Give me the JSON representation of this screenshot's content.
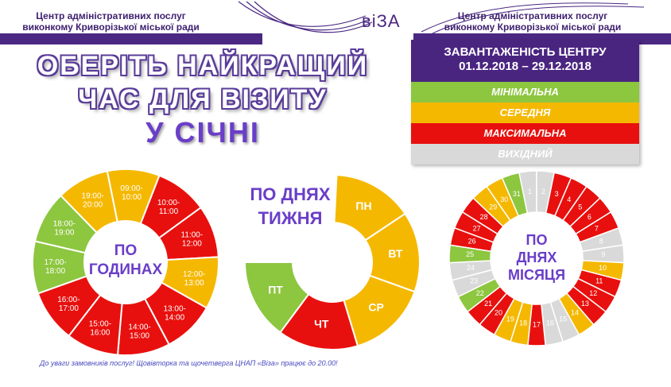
{
  "header": {
    "left_line1": "Центр адміністративних послуг",
    "left_line2": "виконкому Криворізької міської ради",
    "logo": "віЗА",
    "right_line1": "Центр адміністративних послуг",
    "right_line2": "виконкому Криворізької міської ради"
  },
  "title": {
    "line1": "ОБЕРІТЬ НАЙКРАЩИЙ",
    "line2": "ЧАС ДЛЯ ВІЗИТУ",
    "line3": "У СІЧНІ"
  },
  "legend": {
    "heading_line1": "ЗАВАНТАЖЕНІСТЬ ЦЕНТРУ",
    "heading_line2": "01.12.2018 – 29.12.2018",
    "items": [
      {
        "label": "МІНІМАЛЬНА",
        "color": "#8dc63f",
        "text_color": "#ffffff"
      },
      {
        "label": "СЕРЕДНЯ",
        "color": "#f5b800",
        "text_color": "#ffffff"
      },
      {
        "label": "МАКСИМАЛЬНА",
        "color": "#e8100e",
        "text_color": "#ffffff"
      },
      {
        "label": "ВИХІДНИЙ",
        "color": "#d9d9d9",
        "text_color": "#ffffff"
      }
    ]
  },
  "colors": {
    "min": "#8dc63f",
    "mid": "#f5b800",
    "max": "#e8100e",
    "off": "#d9d9d9"
  },
  "chart_data": [
    {
      "type": "pie",
      "title": "ПО ГОДИНАХ",
      "categories": [
        "09:00-10:00",
        "10:00-11:00",
        "11:00-12:00",
        "12:00-13:00",
        "13:00-14:00",
        "14:00-15:00",
        "15:00-16:00",
        "16:00-17:00",
        "17:00-18:00",
        "18:00-19:00",
        "19:00-20:00"
      ],
      "values": [
        1,
        1,
        1,
        1,
        1,
        1,
        1,
        1,
        1,
        1,
        1
      ],
      "load": [
        "mid",
        "max",
        "max",
        "mid",
        "max",
        "max",
        "max",
        "max",
        "min",
        "min",
        "mid"
      ]
    },
    {
      "type": "pie",
      "title_line1": "ПО ДНЯХ",
      "title_line2": "ТИЖНЯ",
      "categories": [
        "ПН",
        "ВТ",
        "СР",
        "ЧТ",
        "ПТ"
      ],
      "values": [
        1,
        1,
        1,
        1,
        1
      ],
      "load": [
        "mid",
        "mid",
        "mid",
        "max",
        "min"
      ]
    },
    {
      "type": "pie",
      "title_line1": "ПО",
      "title_line2": "ДНЯХ",
      "title_line3": "МІСЯЦЯ",
      "categories": [
        "1",
        "2",
        "3",
        "4",
        "5",
        "6",
        "7",
        "8",
        "9",
        "10",
        "11",
        "12",
        "13",
        "14",
        "15",
        "16",
        "17",
        "18",
        "19",
        "20",
        "21",
        "22",
        "23",
        "24",
        "25",
        "26",
        "27",
        "28",
        "29",
        "30",
        "31"
      ],
      "values": [
        1,
        1,
        1,
        1,
        1,
        1,
        1,
        1,
        1,
        1,
        1,
        1,
        1,
        1,
        1,
        1,
        1,
        1,
        1,
        1,
        1,
        1,
        1,
        1,
        1,
        1,
        1,
        1,
        1,
        1,
        1
      ],
      "load": [
        "off",
        "off",
        "max",
        "max",
        "max",
        "max",
        "max",
        "off",
        "off",
        "mid",
        "max",
        "max",
        "max",
        "mid",
        "off",
        "off",
        "max",
        "mid",
        "mid",
        "max",
        "max",
        "min",
        "off",
        "off",
        "min",
        "max",
        "max",
        "max",
        "mid",
        "mid",
        "min"
      ]
    }
  ],
  "footnote": "До уваги замовників послуг!  Щовівторка та щочетверга ЦНАП «Віза» працює до 20.00!"
}
